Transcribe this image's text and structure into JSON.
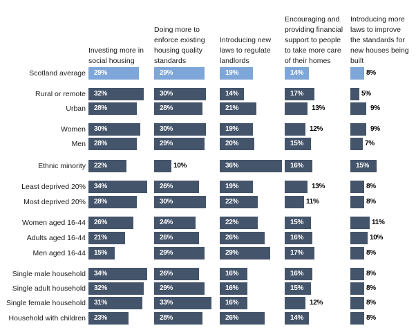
{
  "chart_data": {
    "type": "bar",
    "orientation": "horizontal",
    "unit": "%",
    "colors": {
      "average": "#7ea6d8",
      "group": "#44546a"
    },
    "columns": [
      "Investing more in social housing",
      "Doing more to enforce existing housing quality standards",
      "Introducing new laws to regulate landlords",
      "Encouraging and providing financial support to people to take more care of their homes",
      "Introducing more laws to improve the standards for new houses being built"
    ],
    "header_lines": [
      [
        "Investing more in",
        "social housing"
      ],
      [
        "Doing more to",
        "enforce existing",
        "housing quality",
        "standards"
      ],
      [
        "Introducing new",
        "laws to regulate",
        "landlords"
      ],
      [
        "Encouraging and",
        "providing financial",
        "support to people",
        "to take more care",
        "of their homes"
      ],
      [
        "Introducing more",
        "laws to improve",
        "the standards for",
        "new houses being",
        "built"
      ]
    ],
    "categories": [
      "Scotland average",
      "Rural or remote",
      "Urban",
      "Women",
      "Men",
      "Ethnic minority",
      "Least deprived 20%",
      "Most deprived 20%",
      "Women aged 16-44",
      "Adults aged 16-44",
      "Men aged 16-44",
      "Single male household",
      "Single adult household",
      "Single female household",
      "Household with children"
    ],
    "series": [
      {
        "name": "Investing more in social housing",
        "values": [
          29,
          32,
          28,
          30,
          28,
          22,
          34,
          28,
          26,
          21,
          15,
          34,
          32,
          31,
          23
        ]
      },
      {
        "name": "Doing more to enforce existing housing quality standards",
        "values": [
          29,
          30,
          28,
          30,
          29,
          10,
          26,
          30,
          24,
          26,
          29,
          26,
          29,
          33,
          28
        ]
      },
      {
        "name": "Introducing new laws to regulate landlords",
        "values": [
          19,
          14,
          21,
          19,
          20,
          36,
          19,
          22,
          22,
          26,
          29,
          16,
          16,
          16,
          26
        ]
      },
      {
        "name": "Encouraging and providing financial support to people to take more care of their homes",
        "values": [
          14,
          17,
          13,
          12,
          15,
          16,
          13,
          11,
          15,
          16,
          17,
          16,
          15,
          12,
          14
        ]
      },
      {
        "name": "Introducing more laws to improve the standards for new houses being built",
        "values": [
          8,
          5,
          9,
          9,
          7,
          15,
          8,
          8,
          11,
          10,
          8,
          8,
          8,
          8,
          8
        ]
      }
    ],
    "labels": [
      [
        "29%",
        "32%",
        "28%",
        "30%",
        "28%",
        "22%",
        "34%",
        "28%",
        "26%",
        "21%",
        "15%",
        "34%",
        "32%",
        "31%",
        "23%"
      ],
      [
        "29%",
        "30%",
        "28%",
        "30%",
        "29%",
        "10%",
        "26%",
        "30%",
        "24%",
        "26%",
        "29%",
        "26%",
        "29%",
        "33%",
        "28%"
      ],
      [
        "19%",
        "14%",
        "21%",
        "19%",
        "20%",
        "36%",
        "19%",
        "22%",
        "22%",
        "26%",
        "29%",
        "16%",
        "16%",
        "16%",
        "26%"
      ],
      [
        "14%",
        "17%",
        "13%",
        "12%",
        "15%",
        "16%",
        "13%",
        "11%",
        "15%",
        "16%",
        "17%",
        "16%",
        "15%",
        "12%",
        "14%"
      ],
      [
        "8%",
        "5%",
        "9%",
        "9%",
        "7%",
        "15%",
        "8%",
        "8%",
        "11%",
        "10%",
        "8%",
        "8%",
        "8%",
        "8%",
        "8%"
      ]
    ],
    "title": "",
    "xlabel": "",
    "ylabel": "",
    "xlim": [
      0,
      37
    ],
    "grid": false,
    "legend": "none"
  }
}
